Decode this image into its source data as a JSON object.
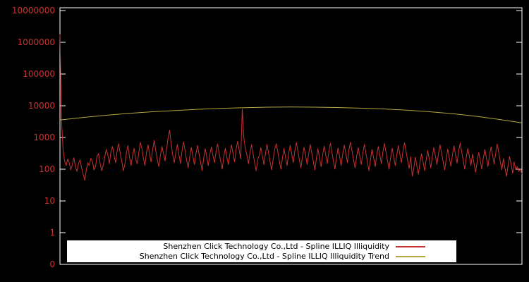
{
  "colors": {
    "background": "#000000",
    "plot_border": "#ffffff",
    "axis_label": "#c83232",
    "series_illiq": "#c83232",
    "series_trend": "#b4a93c",
    "legend_bg": "#ffffff",
    "legend_text": "#000000"
  },
  "axes": {
    "y_scale": "log",
    "y_tick_labels": [
      "10000000",
      "1000000",
      "100000",
      "10000",
      "1000",
      "100",
      "10",
      "1",
      "0"
    ]
  },
  "legend": {
    "entries": [
      {
        "label": "Shenzhen Click Technology Co.,Ltd - Spline ILLIQ Illiquidity",
        "series_key": "illiq"
      },
      {
        "label": "Shenzhen Click Technology Co.,Ltd - Spline ILLIQ Illiquidity Trend",
        "series_key": "trend"
      }
    ]
  },
  "chart_data": {
    "type": "line",
    "title": "",
    "xlabel": "",
    "ylabel": "",
    "y_scale": "log",
    "ylim": [
      0.1,
      10000000
    ],
    "grid": false,
    "legend_position": "bottom-center",
    "series": [
      {
        "name": "Shenzhen Click Technology Co.,Ltd - Spline ILLIQ Illiquidity",
        "key": "illiq",
        "color": "#c83232",
        "values": [
          1800000,
          3500,
          420,
          180,
          130,
          210,
          160,
          95,
          140,
          230,
          120,
          85,
          150,
          200,
          110,
          70,
          45,
          90,
          160,
          130,
          220,
          180,
          95,
          120,
          260,
          310,
          150,
          90,
          130,
          240,
          420,
          280,
          150,
          350,
          520,
          270,
          160,
          380,
          640,
          320,
          180,
          90,
          140,
          330,
          560,
          240,
          130,
          280,
          450,
          210,
          150,
          320,
          700,
          460,
          220,
          130,
          340,
          580,
          290,
          170,
          420,
          810,
          390,
          200,
          120,
          280,
          520,
          310,
          180,
          430,
          950,
          1700,
          620,
          280,
          160,
          340,
          610,
          290,
          150,
          390,
          720,
          380,
          190,
          110,
          250,
          480,
          260,
          140,
          310,
          560,
          300,
          170,
          90,
          210,
          440,
          250,
          130,
          290,
          510,
          270,
          160,
          350,
          620,
          330,
          180,
          100,
          240,
          460,
          240,
          140,
          310,
          580,
          320,
          170,
          420,
          760,
          400,
          210,
          7800,
          950,
          430,
          280,
          150,
          330,
          590,
          310,
          160,
          90,
          200,
          270,
          480,
          260,
          140,
          320,
          610,
          330,
          175,
          95,
          210,
          430,
          640,
          350,
          180,
          100,
          230,
          450,
          240,
          130,
          300,
          560,
          300,
          160,
          380,
          690,
          370,
          190,
          110,
          260,
          490,
          270,
          140,
          320,
          600,
          320,
          170,
          95,
          220,
          440,
          230,
          120,
          280,
          530,
          290,
          150,
          350,
          660,
          340,
          180,
          100,
          240,
          470,
          250,
          130,
          300,
          570,
          310,
          160,
          390,
          710,
          380,
          200,
          110,
          250,
          480,
          260,
          140,
          320,
          610,
          330,
          170,
          90,
          210,
          420,
          230,
          120,
          270,
          520,
          280,
          150,
          340,
          650,
          350,
          180,
          100,
          230,
          460,
          240,
          130,
          290,
          550,
          300,
          160,
          370,
          680,
          360,
          190,
          105,
          250,
          60,
          110,
          240,
          130,
          70,
          160,
          310,
          170,
          90,
          200,
          390,
          210,
          110,
          250,
          480,
          260,
          140,
          310,
          590,
          320,
          170,
          95,
          220,
          430,
          230,
          125,
          280,
          540,
          290,
          155,
          360,
          670,
          350,
          185,
          100,
          240,
          450,
          245,
          130,
          300,
          150,
          80,
          180,
          340,
          190,
          100,
          220,
          420,
          225,
          120,
          270,
          510,
          275,
          145,
          330,
          620,
          335,
          175,
          95,
          215,
          105,
          60,
          130,
          250,
          140,
          75,
          170,
          95,
          120,
          85,
          100,
          70
        ]
      },
      {
        "name": "Shenzhen Click Technology Co.,Ltd - Spline ILLIQ Illiquidity Trend",
        "key": "trend",
        "color": "#b4a93c",
        "values": [
          3548,
          4266,
          5012,
          5754,
          6457,
          7079,
          7762,
          8318,
          8710,
          9016,
          9120,
          9016,
          8810,
          8414,
          7943,
          7244,
          6457,
          5623,
          4677,
          3715,
          2884
        ]
      }
    ]
  }
}
